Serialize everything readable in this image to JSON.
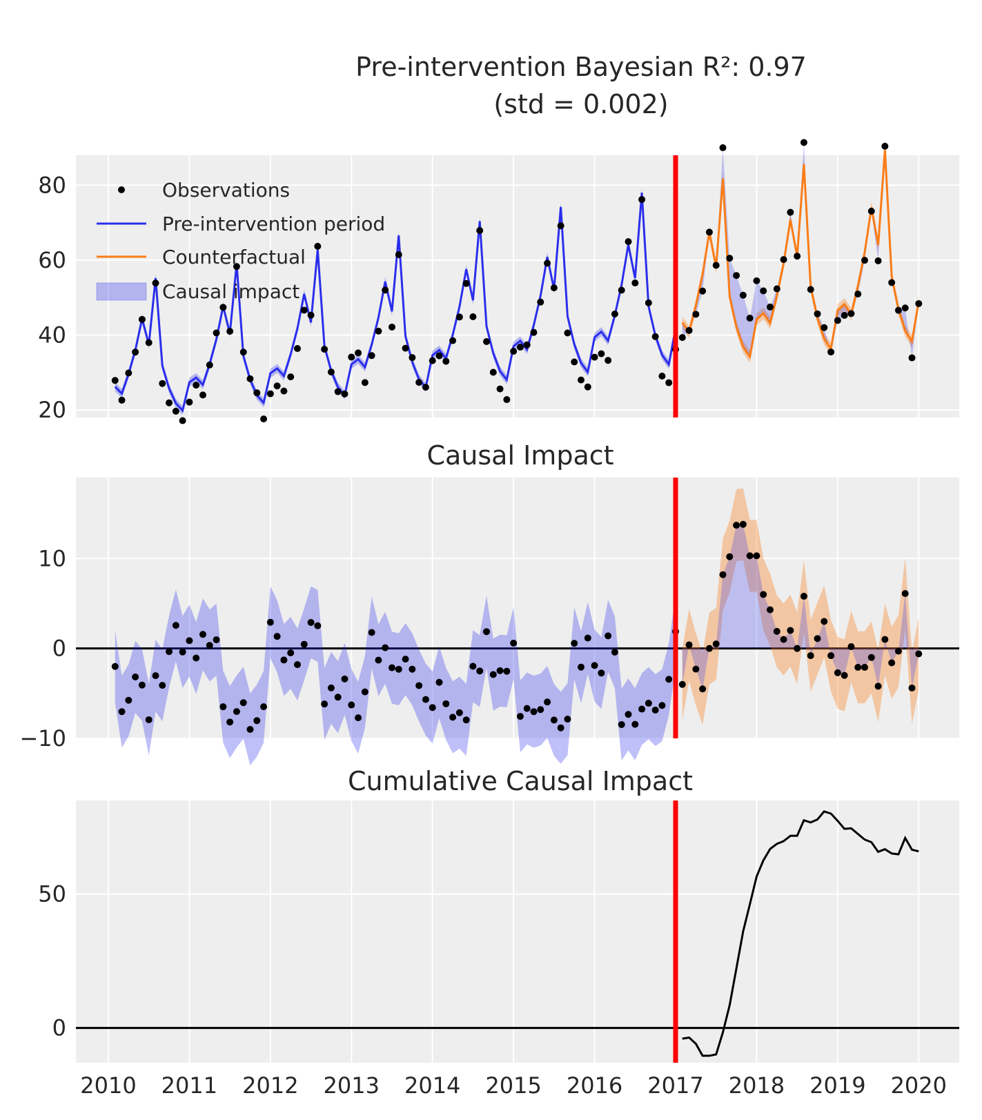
{
  "chart_data": [
    {
      "type": "line",
      "panel": "top",
      "title_line1": "Pre-intervention Bayesian R²: 0.97",
      "title_line2": "(std = 0.002)",
      "ylim": [
        18,
        88
      ],
      "yticks": [
        20,
        40,
        60,
        80
      ],
      "intervention_x": 2017,
      "legend_placement": "top-left",
      "legend": [
        {
          "label": "Observations",
          "kind": "marker"
        },
        {
          "label": "Pre-intervention period",
          "kind": "line",
          "color": "#2a2eec"
        },
        {
          "label": "Counterfactual",
          "kind": "line",
          "color": "#fa7c17"
        },
        {
          "label": "Causal impact",
          "kind": "band",
          "color": "#2a2eec"
        }
      ],
      "colors": {
        "pre": "#2a2eec",
        "post": "#fa7c17",
        "intervention": "#ff0000",
        "observations": "#000000"
      }
    },
    {
      "type": "line",
      "panel": "middle",
      "title": "Causal Impact",
      "ylim": [
        -10,
        19
      ],
      "yticks": [
        -10,
        0,
        10
      ],
      "yticklabels": [
        "−10",
        "0",
        "10"
      ],
      "intervention_x": 2017
    },
    {
      "type": "line",
      "panel": "bottom",
      "title": "Cumulative Causal Impact",
      "ylim": [
        -13,
        85
      ],
      "yticks": [
        0,
        50
      ],
      "intervention_x": 2017,
      "post_x": [
        2017.083,
        2017.167,
        2017.25,
        2017.333,
        2017.417,
        2017.5,
        2017.583,
        2017.667,
        2017.75,
        2017.833,
        2017.917,
        2018.0,
        2018.083,
        2018.167,
        2018.25,
        2018.333,
        2018.417,
        2018.5,
        2018.583,
        2018.667,
        2018.75,
        2018.833,
        2018.917,
        2019.0,
        2019.083,
        2019.167,
        2019.25,
        2019.333,
        2019.417,
        2019.5,
        2019.583,
        2019.667,
        2019.75,
        2019.833,
        2019.917,
        2020.0
      ],
      "cumulative": [
        -4.0,
        -3.6,
        -5.9,
        -10.4,
        -10.4,
        -9.9,
        -1.7,
        8.5,
        22.2,
        36.0,
        46.3,
        56.6,
        62.6,
        66.9,
        68.8,
        69.8,
        71.8,
        71.8,
        77.6,
        76.8,
        77.9,
        80.9,
        80.1,
        77.4,
        74.4,
        74.6,
        72.5,
        70.4,
        69.4,
        65.8,
        66.8,
        65.2,
        64.9,
        71.0,
        66.6,
        66.0
      ]
    }
  ],
  "xticks": [
    2010,
    2011,
    2012,
    2013,
    2014,
    2015,
    2016,
    2017,
    2018,
    2019,
    2020
  ],
  "xticklabels": [
    "2010",
    "2011",
    "2012",
    "2013",
    "2014",
    "2015",
    "2016",
    "2017",
    "2018",
    "2019",
    "2020"
  ]
}
